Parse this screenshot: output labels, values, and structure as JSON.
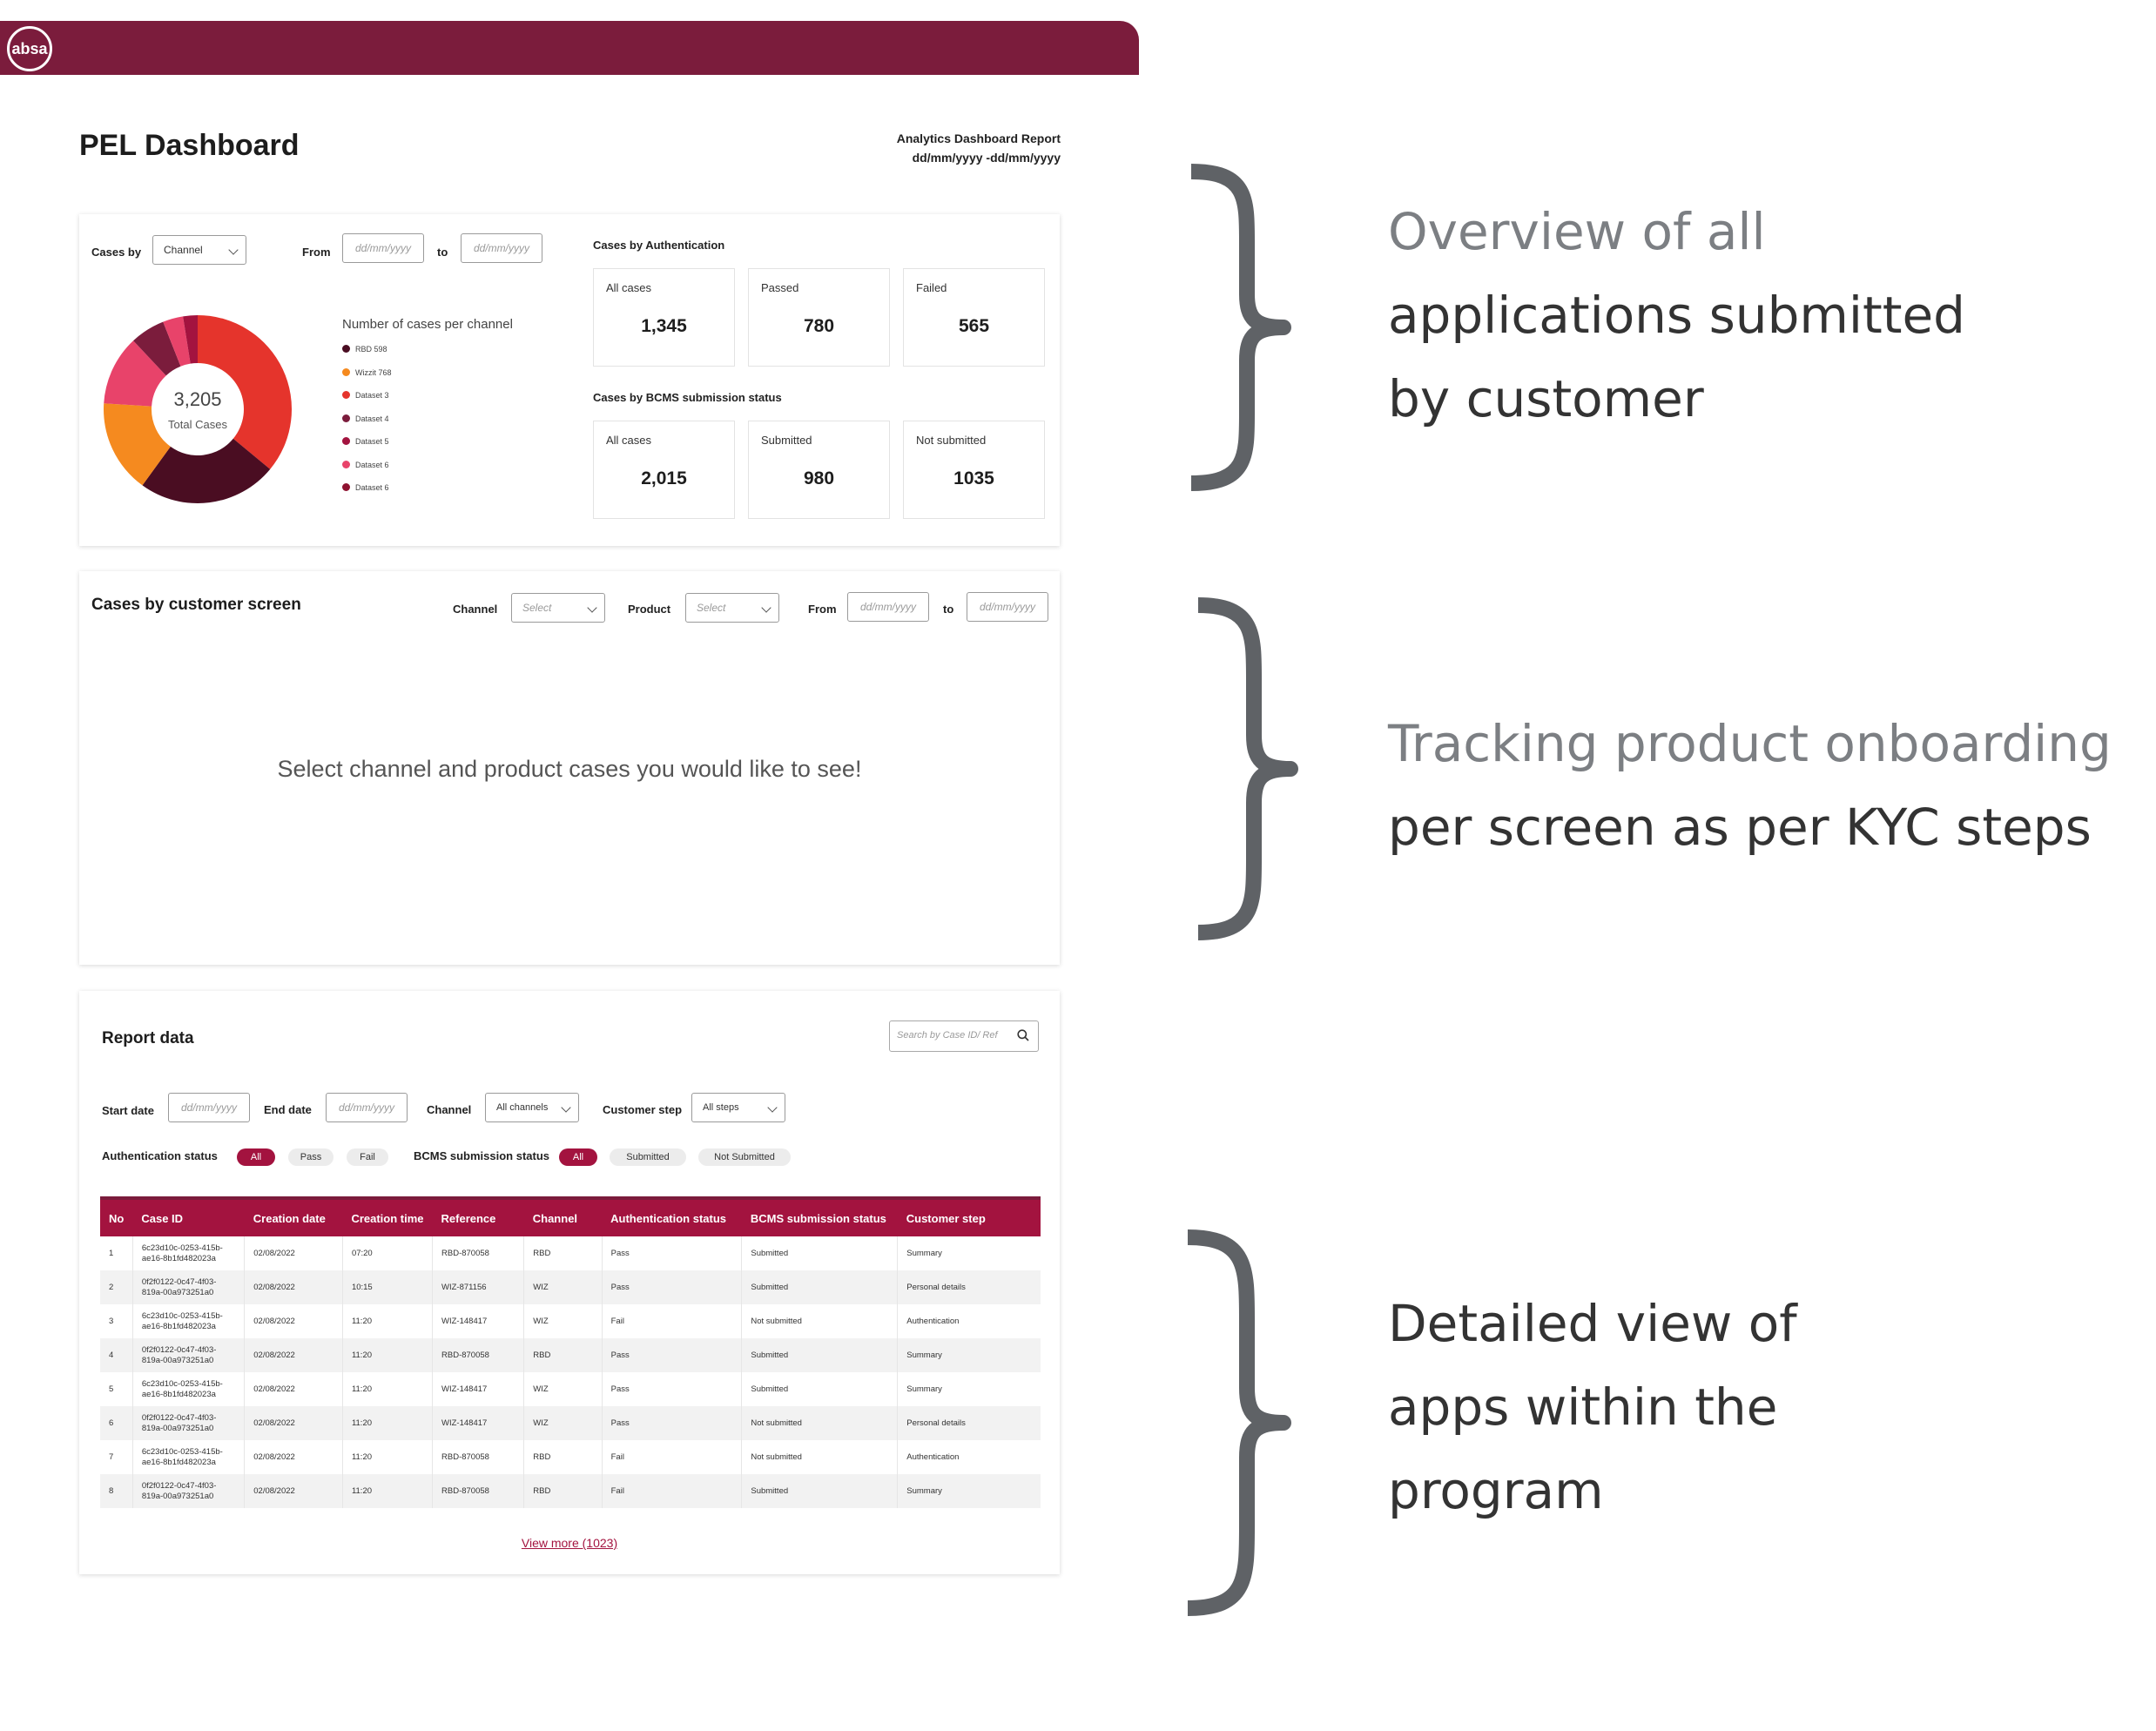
{
  "brand": {
    "logo_text": "absa",
    "bar_color": "#7b1c3c",
    "accent_color": "#a3133f"
  },
  "header": {
    "title": "PEL Dashboard",
    "report_name": "Analytics Dashboard Report",
    "report_range": "dd/mm/yyyy -dd/mm/yyyy"
  },
  "overview": {
    "cases_by_label": "Cases by",
    "cases_by_value": "Channel",
    "from_label": "From",
    "from_placeholder": "dd/mm/yyyy",
    "to_label": "to",
    "to_placeholder": "dd/mm/yyyy",
    "legend_title": "Number of cases per channel",
    "total_value": "3,205",
    "total_label": "Total Cases",
    "legend": [
      {
        "label": "RBD 598",
        "color": "#4a0d22"
      },
      {
        "label": "Wizzit 768",
        "color": "#f58a1f"
      },
      {
        "label": "Dataset 3",
        "color": "#e5342c"
      },
      {
        "label": "Dataset 4",
        "color": "#7b1c3c"
      },
      {
        "label": "Dataset 5",
        "color": "#a3133f"
      },
      {
        "label": "Dataset 6",
        "color": "#e8436a"
      },
      {
        "label": "Dataset 6",
        "color": "#8e1230"
      }
    ],
    "auth_title": "Cases by Authentication",
    "auth": [
      {
        "label": "All cases",
        "value": "1,345"
      },
      {
        "label": "Passed",
        "value": "780"
      },
      {
        "label": "Failed",
        "value": "565"
      }
    ],
    "bcms_title": "Cases by BCMS submission status",
    "bcms": [
      {
        "label": "All cases",
        "value": "2,015"
      },
      {
        "label": "Submitted",
        "value": "980"
      },
      {
        "label": "Not submitted",
        "value": "1035"
      }
    ]
  },
  "screen": {
    "title": "Cases by customer screen",
    "channel_label": "Channel",
    "channel_value": "Select",
    "product_label": "Product",
    "product_value": "Select",
    "from_label": "From",
    "from_placeholder": "dd/mm/yyyy",
    "to_label": "to",
    "to_placeholder": "dd/mm/yyyy",
    "empty_message": "Select channel and product cases you would like to see!"
  },
  "report": {
    "title": "Report data",
    "search_placeholder": "Search by Case ID/ Ref",
    "start_label": "Start date",
    "start_placeholder": "dd/mm/yyyy",
    "end_label": "End date",
    "end_placeholder": "dd/mm/yyyy",
    "channel_label": "Channel",
    "channel_value": "All channels",
    "step_label": "Customer step",
    "step_value": "All steps",
    "auth_label": "Authentication status",
    "auth_pills": [
      "All",
      "Pass",
      "Fail"
    ],
    "bcms_label": "BCMS submission status",
    "bcms_pills": [
      "All",
      "Submitted",
      "Not Submitted"
    ],
    "columns": [
      "No",
      "Case ID",
      "Creation date",
      "Creation time",
      "Reference",
      "Channel",
      "Authentication status",
      "BCMS submission status",
      "Customer step"
    ],
    "rows": [
      [
        "1",
        "6c23d10c-0253-415b-ae16-8b1fd482023a",
        "02/08/2022",
        "07:20",
        "RBD-870058",
        "RBD",
        "Pass",
        "Submitted",
        "Summary"
      ],
      [
        "2",
        "0f2f0122-0c47-4f03-819a-00a973251a0",
        "02/08/2022",
        "10:15",
        "WIZ-871156",
        "WIZ",
        "Pass",
        "Submitted",
        "Personal details"
      ],
      [
        "3",
        "6c23d10c-0253-415b-ae16-8b1fd482023a",
        "02/08/2022",
        "11:20",
        "WIZ-148417",
        "WIZ",
        "Fail",
        "Not submitted",
        "Authentication"
      ],
      [
        "4",
        "0f2f0122-0c47-4f03-819a-00a973251a0",
        "02/08/2022",
        "11:20",
        "RBD-870058",
        "RBD",
        "Pass",
        "Submitted",
        "Summary"
      ],
      [
        "5",
        "6c23d10c-0253-415b-ae16-8b1fd482023a",
        "02/08/2022",
        "11:20",
        "WIZ-148417",
        "WIZ",
        "Pass",
        "Submitted",
        "Summary"
      ],
      [
        "6",
        "0f2f0122-0c47-4f03-819a-00a973251a0",
        "02/08/2022",
        "11:20",
        "WIZ-148417",
        "WIZ",
        "Pass",
        "Not submitted",
        "Personal details"
      ],
      [
        "7",
        "6c23d10c-0253-415b-ae16-8b1fd482023a",
        "02/08/2022",
        "11:20",
        "RBD-870058",
        "RBD",
        "Fail",
        "Not submitted",
        "Authentication"
      ],
      [
        "8",
        "0f2f0122-0c47-4f03-819a-00a973251a0",
        "02/08/2022",
        "11:20",
        "RBD-870058",
        "RBD",
        "Fail",
        "Submitted",
        "Summary"
      ]
    ],
    "view_more": "View more (1023)"
  },
  "annotations": [
    {
      "lines": [
        "Overview of all",
        "applications submitted",
        "by customer"
      ]
    },
    {
      "lines": [
        "Tracking product onboarding",
        "per screen as per KYC steps"
      ]
    },
    {
      "lines": [
        "Detailed view of",
        "apps within the",
        "program"
      ]
    }
  ]
}
